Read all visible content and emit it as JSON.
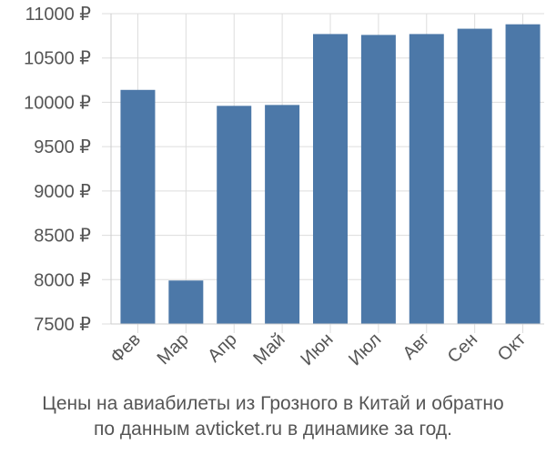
{
  "chart_data": {
    "type": "bar",
    "categories": [
      "Фев",
      "Мар",
      "Апр",
      "Май",
      "Июн",
      "Июл",
      "Авг",
      "Сен",
      "Окт"
    ],
    "values": [
      10140,
      7990,
      9960,
      9970,
      10770,
      10760,
      10770,
      10830,
      10880
    ],
    "ylim": [
      7500,
      11000
    ],
    "yticks": [
      7500,
      8000,
      8500,
      9000,
      9500,
      10000,
      10500,
      11000
    ],
    "ytick_suffix": " ₽",
    "grid": true,
    "bar_color": "#4c78a8"
  },
  "caption": {
    "line1": "Цены на авиабилеты из Грозного в Китай и обратно",
    "line2": "по данным avticket.ru в динамике за год."
  }
}
